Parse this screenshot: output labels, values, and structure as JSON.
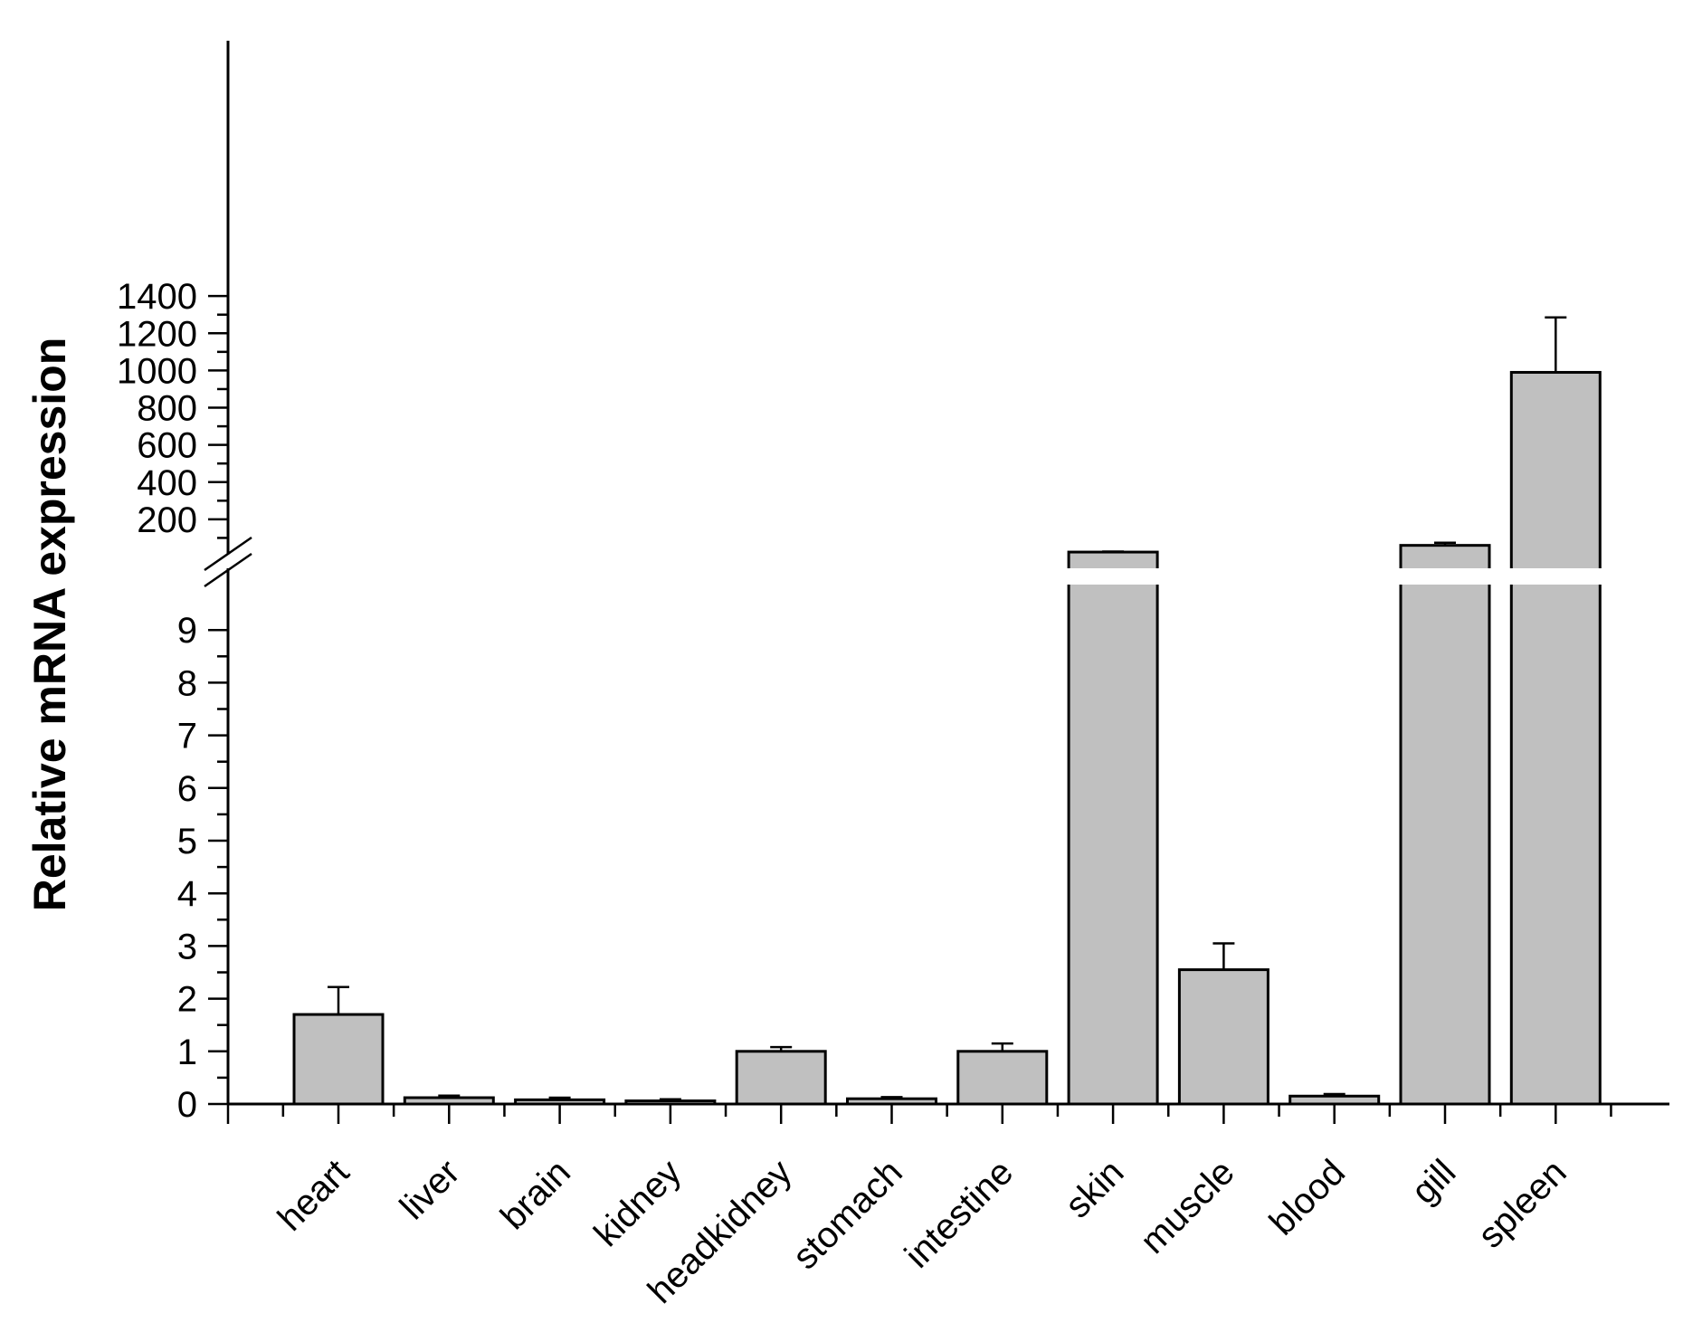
{
  "chart_data": {
    "type": "bar",
    "title": "",
    "xlabel": "",
    "ylabel": "Relative mRNA expression",
    "categories": [
      "heart",
      "liver",
      "brain",
      "kidney",
      "headkidney",
      "stomach",
      "intestine",
      "skin",
      "muscle",
      "blood",
      "gill",
      "spleen"
    ],
    "series": [
      {
        "values": [
          1.7,
          0.12,
          0.08,
          0.06,
          1.0,
          0.1,
          1.0,
          24,
          2.55,
          0.15,
          60,
          990
        ],
        "error": [
          0.52,
          0.04,
          0.04,
          0.03,
          0.08,
          0.03,
          0.15,
          3,
          0.5,
          0.04,
          14,
          295
        ]
      }
    ],
    "y_axis_break": {
      "lower_range": [
        0,
        10
      ],
      "upper_range": [
        0,
        1400
      ],
      "lower_ticks": [
        "0",
        "1",
        "2",
        "3",
        "4",
        "5",
        "6",
        "7",
        "8",
        "9"
      ],
      "upper_ticks": [
        "200",
        "400",
        "600",
        "800",
        "1000",
        "1200",
        "1400"
      ]
    },
    "grid": false,
    "legend": "none",
    "colors": {
      "bar_fill": "#c0c0c0",
      "bar_stroke": "#000000",
      "axis": "#000000"
    }
  }
}
